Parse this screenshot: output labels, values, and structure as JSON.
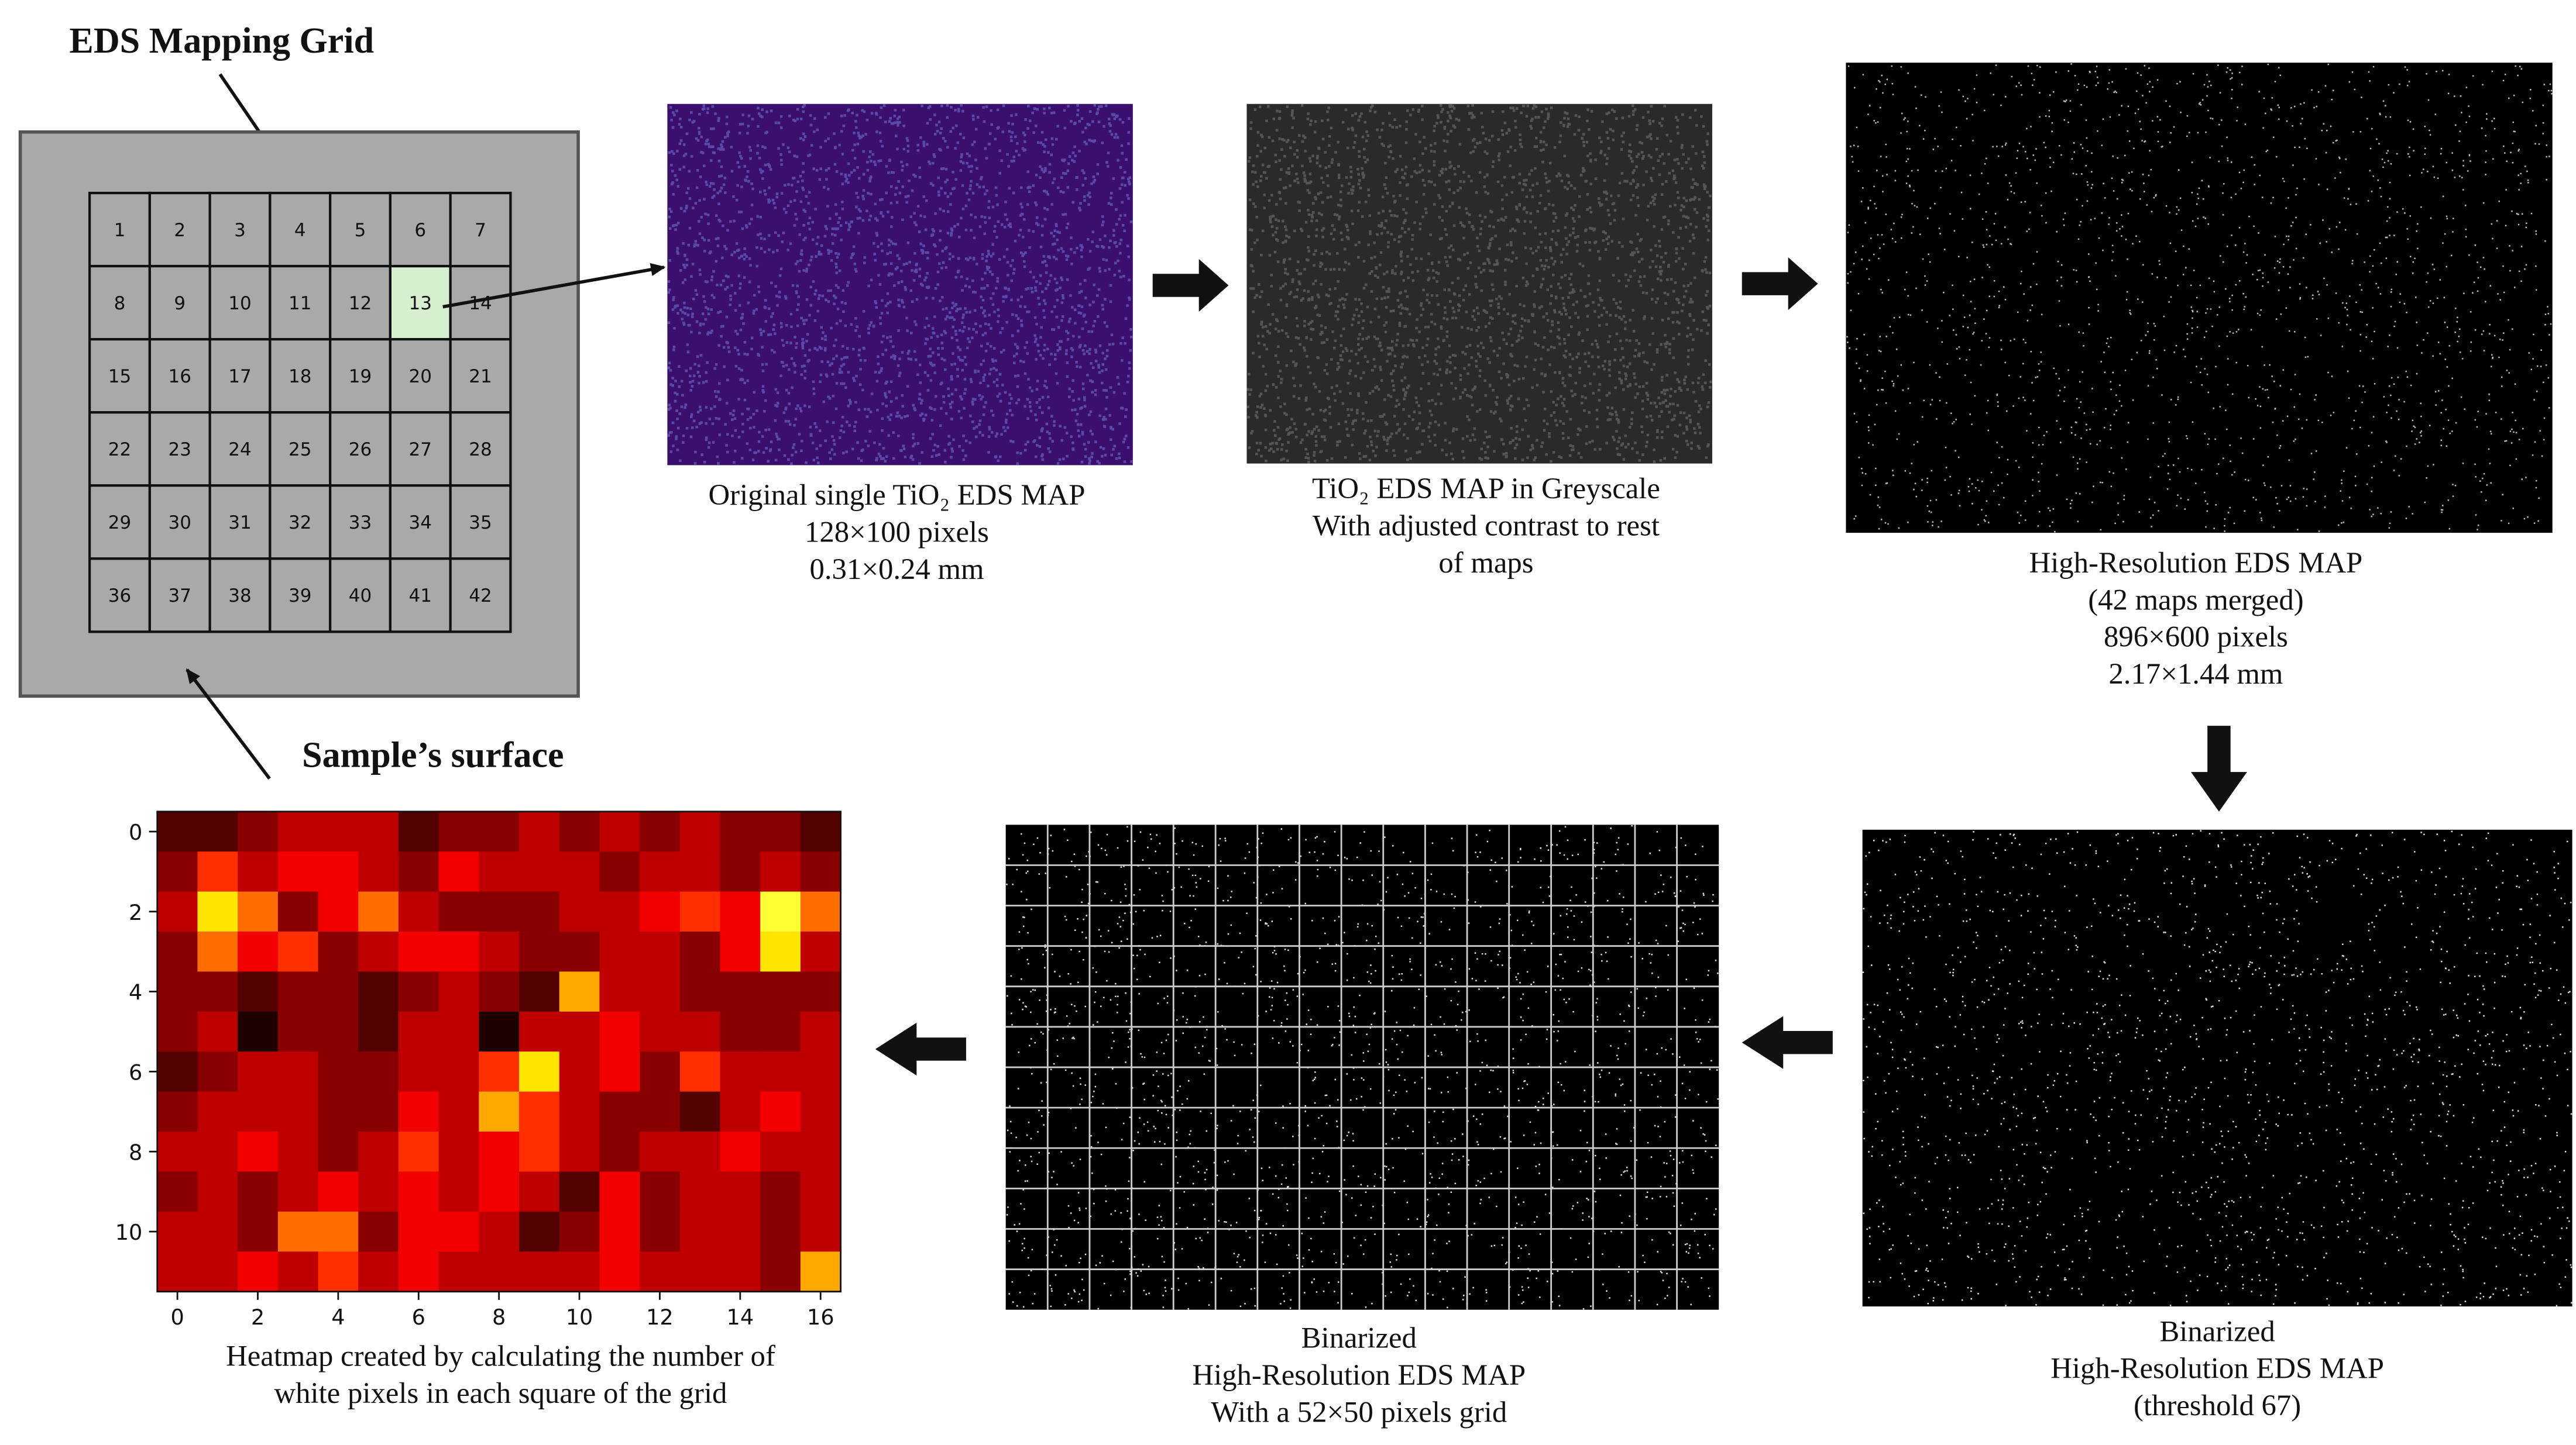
{
  "grid": {
    "title": "EDS Mapping Grid",
    "surface_label": "Sample’s surface",
    "cells": [
      1,
      2,
      3,
      4,
      5,
      6,
      7,
      8,
      9,
      10,
      11,
      12,
      13,
      14,
      15,
      16,
      17,
      18,
      19,
      20,
      21,
      22,
      23,
      24,
      25,
      26,
      27,
      28,
      29,
      30,
      31,
      32,
      33,
      34,
      35,
      36,
      37,
      38,
      39,
      40,
      41,
      42
    ]
  },
  "panels": [
    {
      "caption": [
        "Original single TiO₂ EDS MAP",
        "128×100 pixels",
        "0.31×0.24 mm"
      ]
    },
    {
      "caption": [
        "TiO₂ EDS MAP in Greyscale",
        "With adjusted contrast to rest",
        "of maps"
      ]
    },
    {
      "caption": [
        "High-Resolution EDS MAP",
        "(42 maps merged)",
        "896×600 pixels",
        "2.17×1.44 mm"
      ]
    },
    {
      "caption": [
        "Binarized",
        "High-Resolution EDS MAP",
        "(threshold 67)"
      ]
    },
    {
      "caption": [
        "Binarized",
        "High-Resolution EDS MAP",
        "With a 52×50 pixels grid"
      ]
    }
  ],
  "heatmap": {
    "values": [
      [
        1,
        1,
        2,
        3,
        3,
        3,
        1,
        2,
        2,
        3,
        2,
        3,
        2,
        3,
        2,
        2,
        1
      ],
      [
        2,
        5,
        3,
        4,
        4,
        3,
        2,
        4,
        3,
        3,
        3,
        2,
        3,
        3,
        2,
        3,
        2
      ],
      [
        3,
        8,
        6,
        2,
        4,
        6,
        3,
        2,
        2,
        2,
        3,
        3,
        4,
        5,
        4,
        9,
        6
      ],
      [
        2,
        6,
        4,
        5,
        2,
        3,
        4,
        4,
        3,
        2,
        2,
        3,
        3,
        2,
        4,
        8,
        3
      ],
      [
        2,
        2,
        1,
        2,
        2,
        1,
        2,
        3,
        2,
        1,
        7,
        3,
        3,
        2,
        2,
        2,
        2
      ],
      [
        2,
        3,
        0,
        2,
        2,
        1,
        3,
        3,
        0,
        3,
        3,
        4,
        3,
        3,
        2,
        2,
        3
      ],
      [
        1,
        2,
        3,
        3,
        2,
        2,
        3,
        3,
        5,
        8,
        3,
        4,
        2,
        5,
        3,
        3,
        3
      ],
      [
        2,
        3,
        3,
        3,
        2,
        2,
        4,
        3,
        7,
        5,
        3,
        2,
        2,
        1,
        3,
        4,
        3
      ],
      [
        3,
        3,
        4,
        3,
        2,
        3,
        5,
        3,
        4,
        5,
        3,
        2,
        3,
        3,
        4,
        3,
        3
      ],
      [
        2,
        3,
        2,
        3,
        4,
        3,
        4,
        3,
        4,
        3,
        1,
        4,
        2,
        3,
        3,
        2,
        3
      ],
      [
        3,
        3,
        2,
        6,
        6,
        2,
        4,
        4,
        3,
        1,
        2,
        4,
        2,
        3,
        3,
        2,
        3
      ],
      [
        3,
        3,
        4,
        3,
        5,
        3,
        4,
        3,
        3,
        3,
        3,
        4,
        3,
        3,
        3,
        2,
        7
      ]
    ],
    "xticks": [
      0,
      2,
      4,
      6,
      8,
      10,
      12,
      14,
      16
    ],
    "yticks": [
      0,
      2,
      4,
      6,
      8,
      10
    ],
    "caption": [
      "Heatmap created by calculating the number of",
      "white pixels in each square of the grid"
    ]
  }
}
